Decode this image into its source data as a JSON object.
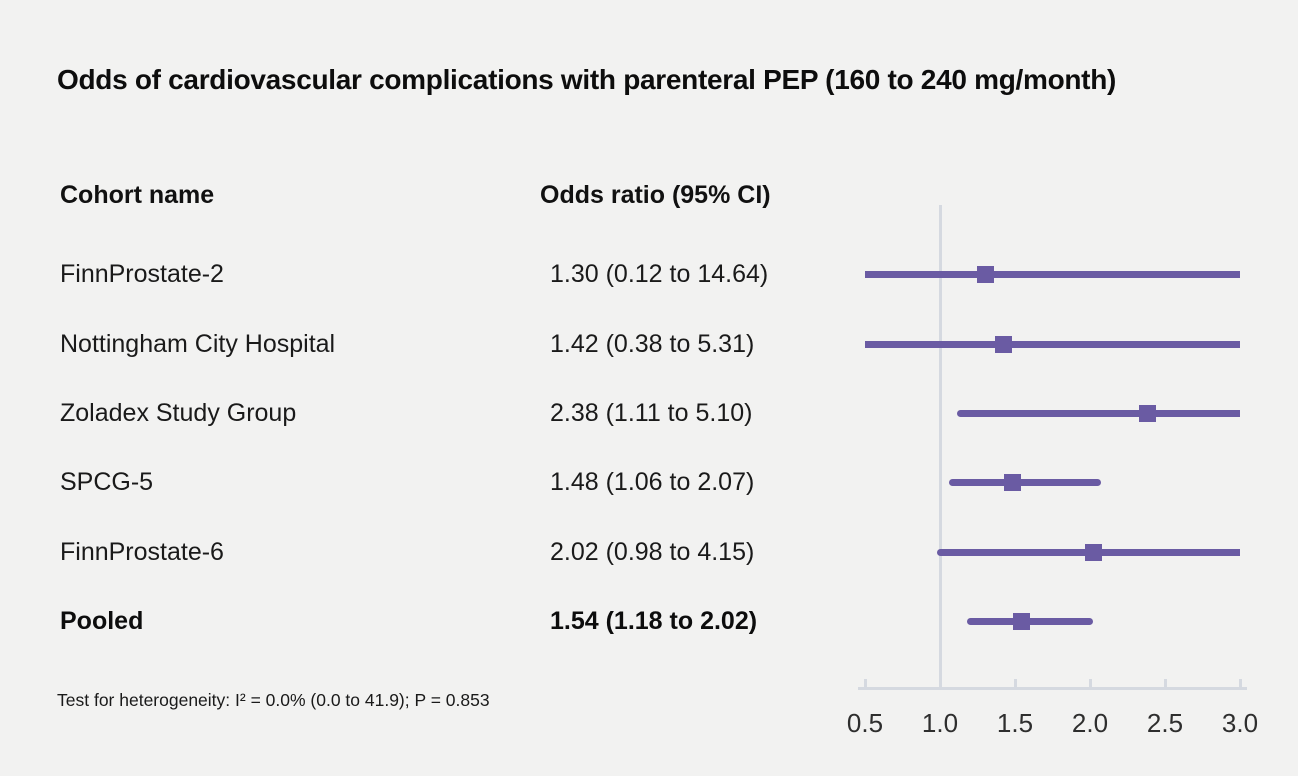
{
  "title": "Odds of cardiovascular complications with parenteral PEP (160 to 240 mg/month)",
  "columns": {
    "cohort": "Cohort name",
    "odds_ratio": "Odds ratio (95% CI)"
  },
  "footnote": "Test for heterogeneity: I² = 0.0% (0.0 to 41.9); P = 0.853",
  "chart_data": {
    "type": "forest",
    "title": "Odds of cardiovascular complications with parenteral PEP (160 to 240 mg/month)",
    "xlim": [
      0.5,
      3.0
    ],
    "reference_line": 1.0,
    "xticks": [
      0.5,
      1.0,
      1.5,
      2.0,
      2.5,
      3.0
    ],
    "xtick_labels": [
      "0.5",
      "1.0",
      "1.5",
      "2.0",
      "2.5",
      "3.0"
    ],
    "grid": false,
    "legend_position": "none",
    "studies": [
      {
        "name": "FinnProstate-2",
        "or_text": "1.30 (0.12 to 14.64)",
        "or": 1.3,
        "ci_low": 0.12,
        "ci_high": 14.64,
        "pooled": false
      },
      {
        "name": "Nottingham City Hospital",
        "or_text": "1.42 (0.38 to 5.31)",
        "or": 1.42,
        "ci_low": 0.38,
        "ci_high": 5.31,
        "pooled": false
      },
      {
        "name": "Zoladex Study Group",
        "or_text": "2.38 (1.11 to 5.10)",
        "or": 2.38,
        "ci_low": 1.11,
        "ci_high": 5.1,
        "pooled": false
      },
      {
        "name": "SPCG-5",
        "or_text": "1.48 (1.06 to 2.07)",
        "or": 1.48,
        "ci_low": 1.06,
        "ci_high": 2.07,
        "pooled": false
      },
      {
        "name": "FinnProstate-6",
        "or_text": "2.02 (0.98 to 4.15)",
        "or": 2.02,
        "ci_low": 0.98,
        "ci_high": 4.15,
        "pooled": false
      },
      {
        "name": "Pooled",
        "or_text": "1.54 (1.18 to 2.02)",
        "or": 1.54,
        "ci_low": 1.18,
        "ci_high": 2.02,
        "pooled": true
      }
    ],
    "colors": {
      "marker": "#6a5ba3",
      "reference_line": "#d5d9e0",
      "axis": "#d5d9e0",
      "background": "#f2f2f1",
      "text": "#1a1a1a"
    }
  }
}
